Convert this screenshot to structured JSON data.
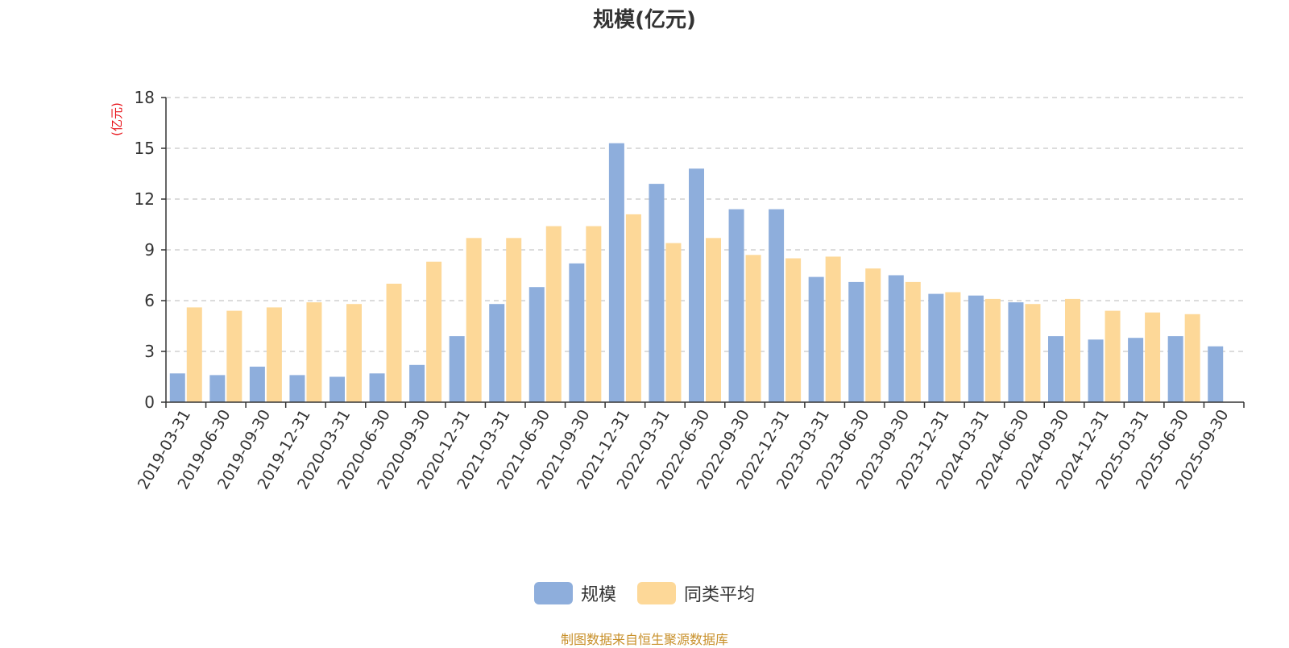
{
  "colors": {
    "series1": "#8eaedc",
    "series2": "#fdd898",
    "axis": "#333333",
    "grid": "#c8c8c8",
    "unit": "#e8141b",
    "footer": "#c8902a"
  },
  "legend": {
    "items": [
      {
        "label": "规模"
      },
      {
        "label": "同类平均"
      }
    ]
  },
  "footer": {
    "text": "制图数据来自恒生聚源数据库"
  },
  "chart_data": {
    "type": "bar",
    "title": "规模(亿元)",
    "ylabel": "(亿元)",
    "xlabel": "",
    "ylim": [
      0,
      18
    ],
    "yticks": [
      0,
      3,
      6,
      9,
      12,
      15,
      18
    ],
    "grid": true,
    "legend_position": "bottom",
    "categories": [
      "2019-03-31",
      "2019-06-30",
      "2019-09-30",
      "2019-12-31",
      "2020-03-31",
      "2020-06-30",
      "2020-09-30",
      "2020-12-31",
      "2021-03-31",
      "2021-06-30",
      "2021-09-30",
      "2021-12-31",
      "2022-03-31",
      "2022-06-30",
      "2022-09-30",
      "2022-12-31",
      "2023-03-31",
      "2023-06-30",
      "2023-09-30",
      "2023-12-31",
      "2024-03-31",
      "2024-06-30",
      "2024-09-30",
      "2024-12-31",
      "2025-03-31",
      "2025-06-30",
      "2025-09-30"
    ],
    "series": [
      {
        "name": "规模",
        "values": [
          1.7,
          1.6,
          2.1,
          1.6,
          1.5,
          1.7,
          2.2,
          3.9,
          5.8,
          6.8,
          8.2,
          15.3,
          12.9,
          13.8,
          11.4,
          11.4,
          7.4,
          7.1,
          7.5,
          6.4,
          6.3,
          5.9,
          3.9,
          3.7,
          3.8,
          3.9,
          3.3
        ]
      },
      {
        "name": "同类平均",
        "values": [
          5.6,
          5.4,
          5.6,
          5.9,
          5.8,
          7.0,
          8.3,
          9.7,
          9.7,
          10.4,
          10.4,
          11.1,
          9.4,
          9.7,
          8.7,
          8.5,
          8.6,
          7.9,
          7.1,
          6.5,
          6.1,
          5.8,
          6.1,
          5.4,
          5.3,
          5.2,
          null
        ]
      }
    ]
  }
}
